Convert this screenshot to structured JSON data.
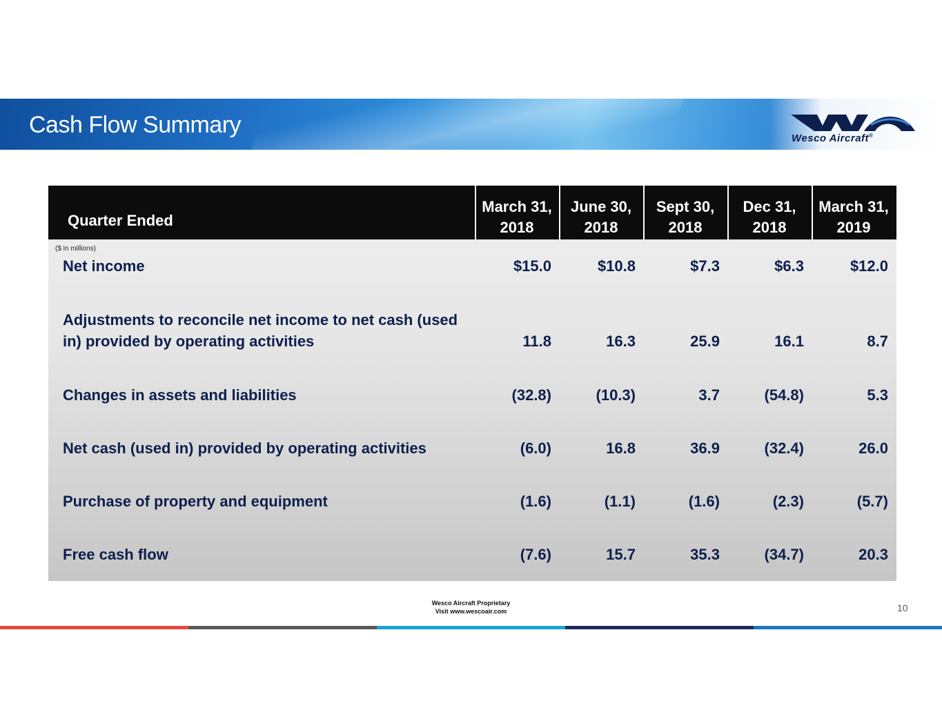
{
  "header": {
    "title": "Cash Flow Summary",
    "logo_text": "Wesco Aircraft",
    "logo_mark": "®"
  },
  "table": {
    "header_label": "Quarter Ended",
    "units": "($ in millions)",
    "columns": [
      {
        "line1": "March 31,",
        "line2": "2018"
      },
      {
        "line1": "June 30,",
        "line2": "2018"
      },
      {
        "line1": "Sept 30,",
        "line2": "2018"
      },
      {
        "line1": "Dec 31,",
        "line2": "2018"
      },
      {
        "line1": "March 31,",
        "line2": "2019"
      }
    ],
    "rows": [
      {
        "label_line1": "Net income",
        "label_line2": "",
        "values": [
          "$15.0",
          "$10.8",
          "$7.3",
          "$6.3",
          "$12.0"
        ]
      },
      {
        "label_line1": "Adjustments to reconcile net income to net cash (used",
        "label_line2": "in) provided by operating activities",
        "values": [
          "11.8",
          "16.3",
          "25.9",
          "16.1",
          "8.7"
        ]
      },
      {
        "label_line1": "Changes in assets and liabilities",
        "label_line2": "",
        "values": [
          "(32.8)",
          "(10.3)",
          "3.7",
          "(54.8)",
          "5.3"
        ]
      },
      {
        "label_line1": "Net cash (used in) provided by operating activities",
        "label_line2": "",
        "values": [
          "(6.0)",
          "16.8",
          "36.9",
          "(32.4)",
          "26.0"
        ]
      },
      {
        "label_line1": "Purchase of property and equipment",
        "label_line2": "",
        "values": [
          "(1.6)",
          "(1.1)",
          "(1.6)",
          "(2.3)",
          "(5.7)"
        ]
      },
      {
        "label_line1": "Free cash flow",
        "label_line2": "",
        "values": [
          "(7.6)",
          "15.7",
          "35.3",
          "(34.7)",
          "20.3"
        ]
      }
    ]
  },
  "footer": {
    "proprietary": "Wesco Aircraft Proprietary",
    "visit": "Visit www.wescoair.com",
    "page_number": "10"
  },
  "colors": {
    "stripe": [
      "#e2483c",
      "#5a5a5a",
      "#1ca2d6",
      "#1e2a5a",
      "#1c74c4"
    ]
  }
}
